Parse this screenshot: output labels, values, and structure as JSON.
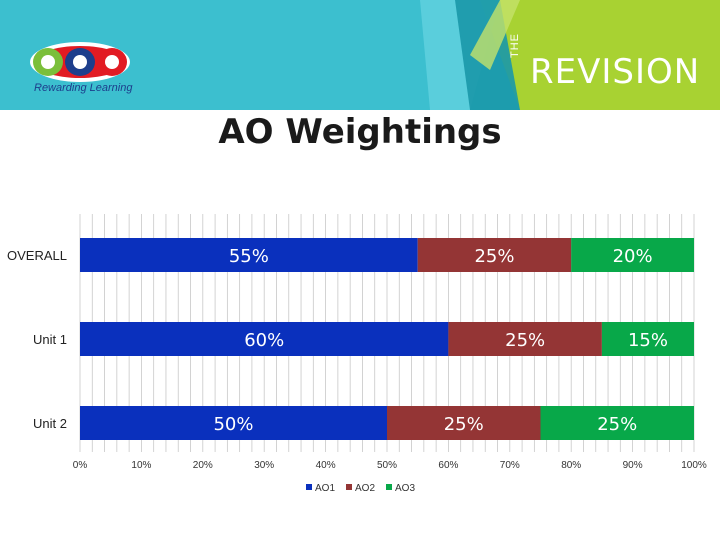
{
  "header": {
    "logo_name": "cea",
    "logo_tagline": "Rewarding Learning",
    "brand_prefix": "THE",
    "brand_name": "REVISION",
    "colors": {
      "teal": "#3cbfcf",
      "lime": "#a8d232",
      "dark_teal": "#1a98a8"
    }
  },
  "chart_data": {
    "type": "bar",
    "orientation": "horizontal",
    "stacked": "percent",
    "title": "AO Weightings",
    "categories": [
      "OVERALL",
      "Unit 1",
      "Unit 2"
    ],
    "series": [
      {
        "name": "AO1",
        "values": [
          55,
          60,
          50
        ],
        "labels": [
          "55%",
          "60%",
          "50%"
        ],
        "color": "#0a30bd"
      },
      {
        "name": "AO2",
        "values": [
          25,
          25,
          25
        ],
        "labels": [
          "25%",
          "25%",
          "25%"
        ],
        "color": "#943535"
      },
      {
        "name": "AO3",
        "values": [
          20,
          15,
          25
        ],
        "labels": [
          "20%",
          "15%",
          "25%"
        ],
        "color": "#08a849"
      }
    ],
    "xlim": [
      0,
      100
    ],
    "x_ticks": [
      "0%",
      "10%",
      "20%",
      "30%",
      "40%",
      "50%",
      "60%",
      "70%",
      "80%",
      "90%",
      "100%"
    ],
    "grid": true,
    "legend_position": "bottom"
  }
}
